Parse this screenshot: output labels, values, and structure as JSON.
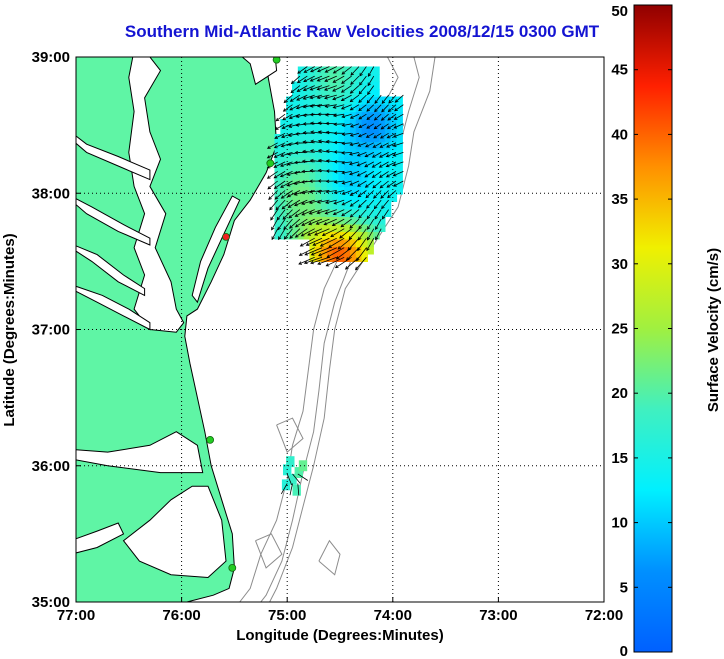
{
  "title": "Southern Mid‑Atlantic Raw Velocities 2008/12/15 0300 GMT",
  "colors": {
    "land": "#5ff5a5",
    "coast": "#000000",
    "bathymetry": "#8c8c8c",
    "grid": "#000000",
    "station": "#22cc22",
    "station_alt": "#ee2222",
    "title": "#1414d2"
  },
  "chart_data": {
    "type": "heatmap",
    "xlabel": "Longitude (Degrees:Minutes)",
    "ylabel": "Latitude (Degrees:Minutes)",
    "x_ticks": [
      {
        "value": -77,
        "label": "77:00"
      },
      {
        "value": -76,
        "label": "76:00"
      },
      {
        "value": -75,
        "label": "75:00"
      },
      {
        "value": -74,
        "label": "74:00"
      },
      {
        "value": -73,
        "label": "73:00"
      },
      {
        "value": -72,
        "label": "72:00"
      }
    ],
    "y_ticks": [
      {
        "value": 35,
        "label": "35:00"
      },
      {
        "value": 36,
        "label": "36:00"
      },
      {
        "value": 37,
        "label": "37:00"
      },
      {
        "value": 38,
        "label": "38:00"
      },
      {
        "value": 39,
        "label": "39:00"
      }
    ],
    "xlim": [
      -77,
      -72
    ],
    "ylim": [
      35,
      39
    ],
    "grid": true,
    "colorbar": {
      "label": "Surface Velocity (cm/s)",
      "min": 0,
      "max": 50,
      "ticks": [
        "0",
        "5",
        "10",
        "15",
        "20",
        "25",
        "30",
        "35",
        "40",
        "45",
        "50"
      ],
      "colormap": "jet"
    },
    "stations": [
      {
        "lon": -75.1,
        "lat": 38.98,
        "type": "normal"
      },
      {
        "lon": -75.16,
        "lat": 38.22,
        "type": "normal"
      },
      {
        "lon": -75.58,
        "lat": 37.68,
        "type": "alt"
      },
      {
        "lon": -75.73,
        "lat": 36.19,
        "type": "normal"
      },
      {
        "lon": -75.52,
        "lat": 35.25,
        "type": "normal"
      }
    ],
    "velocity_field": {
      "lon_range": [
        -75.12,
        -73.9
      ],
      "lat_range": [
        37.5,
        38.95
      ],
      "speed_range": [
        4,
        40
      ],
      "hot_spot": {
        "lon": -74.5,
        "lat": 37.55,
        "speed": 40
      },
      "cold_spot": {
        "lon": -74.2,
        "lat": 38.5,
        "speed": 6
      }
    },
    "secondary_patch": {
      "lon": -74.95,
      "lat": 35.9,
      "speed": 18
    }
  }
}
